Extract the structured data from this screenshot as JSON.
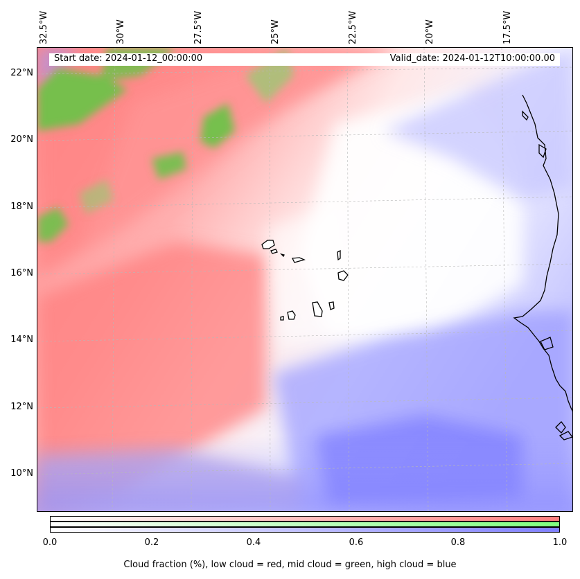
{
  "map": {
    "lon_labels": [
      "32.5°W",
      "30°W",
      "27.5°W",
      "25°W",
      "22.5°W",
      "20°W",
      "17.5°W"
    ],
    "lat_labels": [
      "22°N",
      "20°N",
      "18°N",
      "16°N",
      "14°N",
      "12°N",
      "10°N"
    ],
    "start_date": "Start date: 2024-01-12_00:00:00",
    "valid_date": "Valid_date: 2024-01-12T10:00:00.00",
    "colors": {
      "low_cloud": "#ff7f7f",
      "mid_cloud": "#6fc24a",
      "high_cloud": "#7f7fff",
      "coastline": "#000000"
    }
  },
  "colorbar": {
    "ticks": [
      "0.0",
      "0.2",
      "0.4",
      "0.6",
      "0.8",
      "1.0"
    ],
    "title": "Cloud fraction (%), low cloud = red, mid cloud = green, high cloud = blue"
  }
}
